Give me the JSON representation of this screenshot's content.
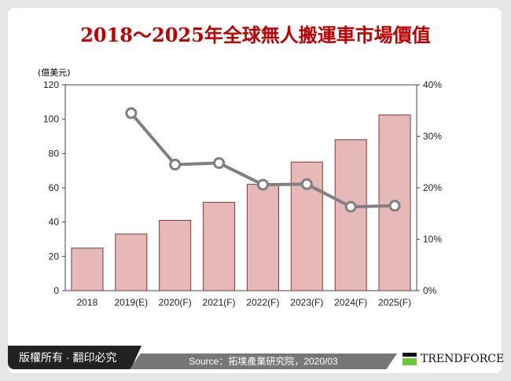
{
  "chart_data": {
    "type": "bar",
    "title": "2018～2025年全球無人搬運車市場價值",
    "ylabel": "(億美元)",
    "categories": [
      "2018",
      "2019(E)",
      "2020(F)",
      "2021(F)",
      "2022(F)",
      "2023(F)",
      "2024(F)",
      "2025(F)"
    ],
    "series": [
      {
        "type": "bar",
        "axis": "left",
        "values": [
          24.8,
          33,
          41,
          51.5,
          62,
          75,
          88,
          102.5
        ],
        "color": "#e6b8b7"
      },
      {
        "type": "line",
        "axis": "right",
        "values": [
          null,
          34.5,
          24.5,
          24.8,
          20.6,
          20.7,
          16.3,
          16.5
        ],
        "color": "#808080"
      }
    ],
    "ylim": [
      0,
      120
    ],
    "yticks": [
      0,
      20,
      40,
      60,
      80,
      100,
      120
    ],
    "y2lim": [
      0,
      40
    ],
    "y2ticks": [
      "0%",
      "10%",
      "20%",
      "30%",
      "40%"
    ],
    "grid": false
  },
  "footer": {
    "copyright": "版權所有 · 翻印必究",
    "source": "Source：拓墣產業研究院，2020/03",
    "logo": "TRENDFORCE"
  }
}
